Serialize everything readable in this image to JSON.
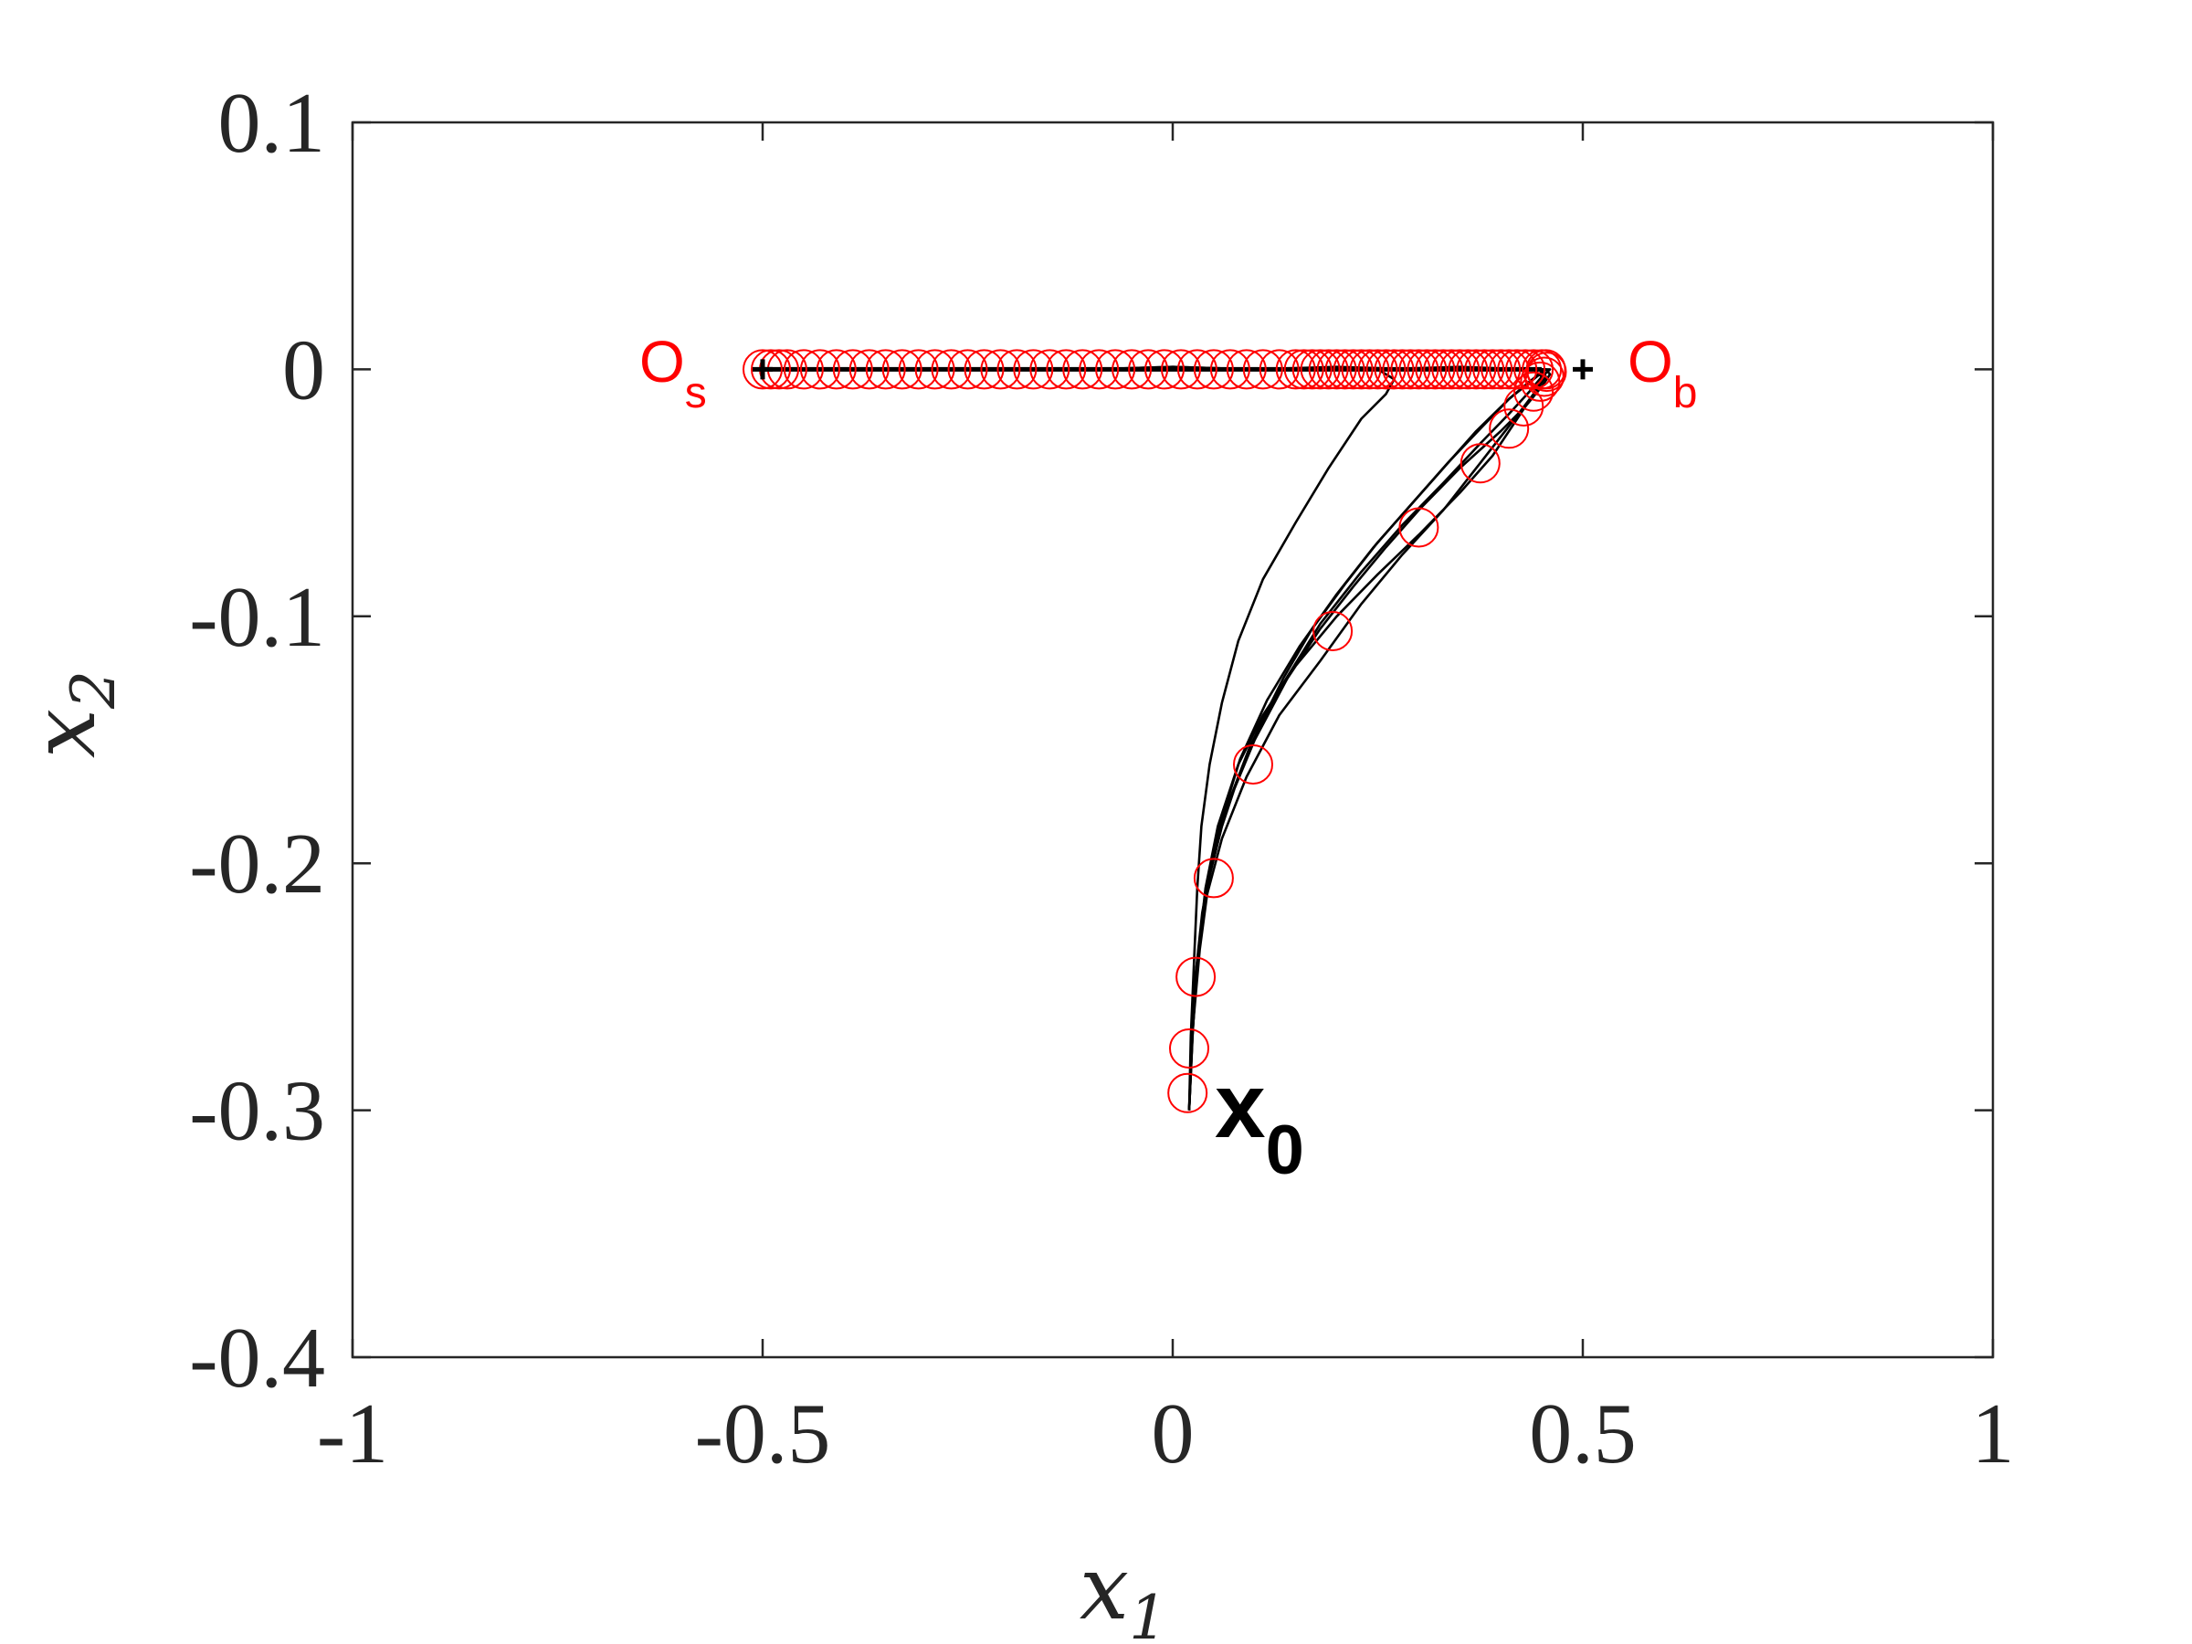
{
  "chart_data": {
    "type": "line",
    "title": "",
    "xlabel": "x",
    "xlabel_sub": "1",
    "ylabel": "x",
    "ylabel_sub": "2",
    "xlim": [
      -1,
      1
    ],
    "ylim": [
      -0.4,
      0.1
    ],
    "x_ticks": [
      -1,
      -0.5,
      0,
      0.5,
      1
    ],
    "x_tick_labels": [
      "-1",
      "-0.5",
      "0",
      "0.5",
      "1"
    ],
    "y_ticks": [
      0.1,
      0,
      -0.1,
      -0.2,
      -0.3,
      -0.4
    ],
    "y_tick_labels": [
      "0.1",
      "0",
      "-0.1",
      "-0.2",
      "-0.3",
      "-0.4"
    ],
    "grid": false,
    "colors": {
      "axes": "#262626",
      "trajectories": "#000000",
      "markers": "#ff0000"
    },
    "series": [
      {
        "color": "#000000",
        "x": [
          0.02,
          0.024,
          0.03,
          0.04,
          0.055,
          0.08,
          0.11,
          0.15,
          0.2,
          0.25,
          0.3,
          0.35,
          0.39,
          0.42,
          0.44,
          0.45,
          0.44,
          0.4,
          0.3,
          0.2,
          0.1,
          0,
          -0.1,
          -0.2,
          -0.3,
          -0.4,
          -0.45,
          -0.48,
          -0.5
        ],
        "y": [
          -0.3,
          -0.27,
          -0.24,
          -0.21,
          -0.185,
          -0.16,
          -0.14,
          -0.12,
          -0.1,
          -0.083,
          -0.067,
          -0.05,
          -0.035,
          -0.02,
          -0.01,
          -0.003,
          0,
          0,
          0,
          0.001,
          0,
          0.001,
          0,
          0,
          0,
          0,
          0,
          0,
          0
        ]
      },
      {
        "color": "#000000",
        "x": [
          0.02,
          0.024,
          0.03,
          0.04,
          0.06,
          0.09,
          0.13,
          0.18,
          0.23,
          0.28,
          0.33,
          0.37,
          0.41,
          0.44,
          0.455,
          0.45,
          0.43,
          0.35,
          0.25,
          0.15,
          0.05,
          -0.05,
          -0.15,
          -0.25,
          -0.35,
          -0.45,
          -0.5
        ],
        "y": [
          -0.3,
          -0.27,
          -0.24,
          -0.215,
          -0.19,
          -0.165,
          -0.14,
          -0.118,
          -0.095,
          -0.075,
          -0.057,
          -0.04,
          -0.023,
          -0.01,
          -0.003,
          0,
          0,
          0.001,
          0,
          0,
          0,
          0,
          0,
          0,
          0,
          0,
          0
        ]
      },
      {
        "color": "#000000",
        "x": [
          0.02,
          0.023,
          0.028,
          0.036,
          0.05,
          0.075,
          0.1,
          0.14,
          0.18,
          0.22,
          0.26,
          0.3,
          0.35,
          0.4,
          0.43,
          0.45,
          0.46,
          0.455,
          0.44,
          0.4,
          0.3,
          0.2,
          0.1,
          0,
          -0.1,
          -0.2,
          -0.3,
          -0.4,
          -0.5
        ],
        "y": [
          -0.3,
          -0.27,
          -0.245,
          -0.22,
          -0.195,
          -0.17,
          -0.15,
          -0.125,
          -0.105,
          -0.088,
          -0.072,
          -0.057,
          -0.04,
          -0.025,
          -0.015,
          -0.007,
          -0.002,
          0,
          0,
          0,
          0,
          0,
          0,
          0,
          0,
          0,
          0,
          0,
          0
        ]
      },
      {
        "color": "#000000",
        "x": [
          0.02,
          0.022,
          0.026,
          0.03,
          0.035,
          0.045,
          0.06,
          0.08,
          0.11,
          0.15,
          0.19,
          0.23,
          0.26,
          0.27,
          0.25,
          0.2,
          0.1,
          0,
          -0.1,
          -0.2,
          -0.3,
          -0.4,
          -0.5
        ],
        "y": [
          -0.3,
          -0.27,
          -0.24,
          -0.21,
          -0.185,
          -0.16,
          -0.135,
          -0.11,
          -0.085,
          -0.062,
          -0.04,
          -0.02,
          -0.01,
          -0.004,
          0,
          0,
          0,
          0.001,
          0,
          0,
          0,
          0,
          0
        ]
      },
      {
        "color": "#000000",
        "x": [
          0.02,
          0.023,
          0.028,
          0.035,
          0.045,
          0.06,
          0.08,
          0.105,
          0.135,
          0.17,
          0.21,
          0.25,
          0.29,
          0.33,
          0.37,
          0.41,
          0.44,
          0.455,
          0.44,
          0.35,
          0.2,
          0,
          -0.2,
          -0.4,
          -0.5
        ],
        "y": [
          -0.3,
          -0.27,
          -0.245,
          -0.225,
          -0.205,
          -0.185,
          -0.165,
          -0.145,
          -0.125,
          -0.105,
          -0.087,
          -0.07,
          -0.055,
          -0.04,
          -0.025,
          -0.012,
          -0.004,
          0,
          0,
          0,
          0,
          0,
          0,
          0,
          0
        ]
      },
      {
        "color": "#000000",
        "x": [
          0.02,
          0.025,
          0.033,
          0.045,
          0.065,
          0.095,
          0.135,
          0.18,
          0.23,
          0.28,
          0.33,
          0.375,
          0.41,
          0.435,
          0.45,
          0.46,
          0.455,
          0.42,
          0.3,
          0.15,
          0,
          -0.15,
          -0.3,
          -0.45,
          -0.5
        ],
        "y": [
          -0.3,
          -0.265,
          -0.235,
          -0.205,
          -0.178,
          -0.152,
          -0.127,
          -0.103,
          -0.082,
          -0.063,
          -0.046,
          -0.03,
          -0.018,
          -0.009,
          -0.003,
          0,
          0,
          0,
          0,
          0,
          0,
          0,
          0,
          0,
          0
        ]
      },
      {
        "color": "#000000",
        "x": [
          0.02,
          0.024,
          0.031,
          0.042,
          0.058,
          0.082,
          0.115,
          0.155,
          0.2,
          0.245,
          0.29,
          0.335,
          0.375,
          0.41,
          0.435,
          0.45,
          0.447,
          0.42,
          0.32,
          0.2,
          0.05,
          -0.1,
          -0.25,
          -0.4,
          -0.5
        ],
        "y": [
          -0.3,
          -0.268,
          -0.238,
          -0.21,
          -0.184,
          -0.158,
          -0.134,
          -0.112,
          -0.091,
          -0.072,
          -0.055,
          -0.038,
          -0.024,
          -0.012,
          -0.005,
          -0.001,
          0,
          0,
          0,
          0,
          0,
          0,
          0,
          0,
          0
        ]
      }
    ],
    "markers": {
      "color": "#ff0000",
      "x": [
        0.018,
        0.02,
        0.028,
        0.05,
        0.098,
        0.195,
        0.3,
        0.375,
        0.41,
        0.428,
        0.44,
        0.448,
        0.453,
        0.456,
        0.455,
        0.45,
        0.44,
        0.43,
        0.42,
        0.41,
        0.4,
        0.39,
        0.38,
        0.37,
        0.36,
        0.35,
        0.34,
        0.33,
        0.32,
        0.31,
        0.3,
        0.29,
        0.28,
        0.27,
        0.26,
        0.25,
        0.24,
        0.23,
        0.22,
        0.21,
        0.2,
        0.19,
        0.18,
        0.17,
        0.16,
        0.15,
        0.13,
        0.11,
        0.09,
        0.07,
        0.05,
        0.03,
        0.01,
        -0.01,
        -0.03,
        -0.05,
        -0.07,
        -0.09,
        -0.11,
        -0.13,
        -0.15,
        -0.17,
        -0.19,
        -0.21,
        -0.23,
        -0.25,
        -0.27,
        -0.29,
        -0.31,
        -0.33,
        -0.35,
        -0.37,
        -0.39,
        -0.41,
        -0.43,
        -0.45,
        -0.47,
        -0.48,
        -0.49,
        -0.5
      ],
      "y": [
        -0.293,
        -0.275,
        -0.246,
        -0.206,
        -0.16,
        -0.106,
        -0.064,
        -0.038,
        -0.024,
        -0.015,
        -0.009,
        -0.005,
        -0.003,
        -0.001,
        0,
        0,
        0,
        0,
        0,
        0,
        0,
        0,
        0,
        0,
        0,
        0,
        0,
        0,
        0,
        0,
        0,
        0,
        0,
        0,
        0,
        0,
        0,
        0,
        0,
        0,
        0,
        0,
        0,
        0,
        0,
        0,
        0,
        0,
        0,
        0,
        0,
        0,
        0,
        0,
        0,
        0,
        0,
        0,
        0,
        0,
        0,
        0,
        0,
        0,
        0,
        0,
        0,
        0,
        0,
        0,
        0,
        0,
        0,
        0,
        0,
        0,
        0,
        0,
        0,
        0
      ]
    },
    "points": [
      {
        "name": "O_s",
        "x": -0.5,
        "y": 0
      },
      {
        "name": "O_b",
        "x": 0.5,
        "y": 0
      },
      {
        "name": "x_0",
        "x": 0.02,
        "y": -0.3
      }
    ],
    "annotations": [
      {
        "id": "os",
        "text": "O",
        "sub": "s",
        "color": "#ff0000"
      },
      {
        "id": "ob",
        "text": "O",
        "sub": "b",
        "color": "#ff0000"
      },
      {
        "id": "x0",
        "text": "x",
        "sub": "0",
        "color": "#000000"
      }
    ]
  }
}
